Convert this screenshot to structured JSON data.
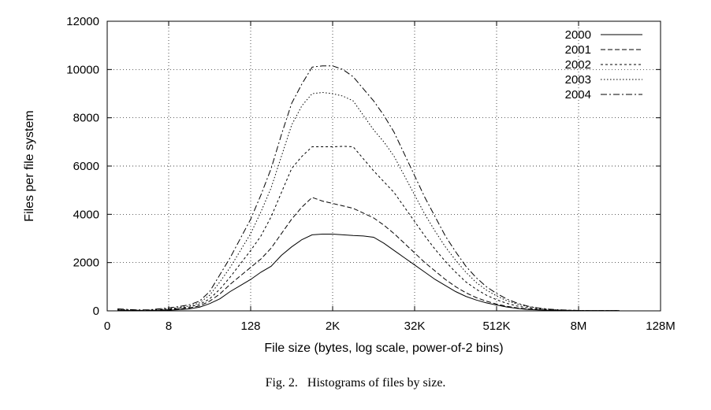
{
  "chart_data": {
    "type": "line",
    "title": "",
    "xlabel": "File size (bytes, log scale, power-of-2 bins)",
    "ylabel": "Files per file system",
    "x_scale": "log2",
    "xlim": [
      0,
      26
    ],
    "ylim": [
      0,
      12000
    ],
    "x_ticks": [
      {
        "value": 0,
        "label": "0"
      },
      {
        "value": 3,
        "label": "8"
      },
      {
        "value": 7,
        "label": "128"
      },
      {
        "value": 11,
        "label": "2K"
      },
      {
        "value": 15,
        "label": "32K"
      },
      {
        "value": 19,
        "label": "512K"
      },
      {
        "value": 23,
        "label": "8M"
      },
      {
        "value": 27,
        "label": "128M"
      }
    ],
    "y_ticks": [
      0,
      2000,
      4000,
      6000,
      8000,
      10000,
      12000
    ],
    "grid": true,
    "legend_position": "top-right",
    "x": [
      0.5,
      1,
      1.5,
      2,
      2.5,
      3,
      3.5,
      4,
      4.5,
      5,
      5.5,
      6,
      6.5,
      7,
      7.5,
      8,
      8.5,
      9,
      9.5,
      10,
      10.5,
      11,
      11.5,
      12,
      12.5,
      13,
      13.5,
      14,
      14.5,
      15,
      15.5,
      16,
      16.5,
      17,
      17.5,
      18,
      18.5,
      19,
      19.5,
      20,
      20.5,
      21,
      21.5,
      22,
      22.5,
      23,
      23.5,
      24,
      24.5,
      25
    ],
    "series": [
      {
        "name": "2000",
        "dash": "",
        "values": [
          20,
          15,
          10,
          10,
          20,
          30,
          50,
          80,
          150,
          300,
          500,
          800,
          1050,
          1300,
          1600,
          1850,
          2300,
          2650,
          2950,
          3150,
          3180,
          3180,
          3150,
          3120,
          3100,
          3050,
          2800,
          2500,
          2200,
          1900,
          1600,
          1300,
          1050,
          800,
          600,
          450,
          330,
          240,
          160,
          100,
          60,
          40,
          25,
          15,
          10,
          5,
          5,
          5,
          5,
          5
        ]
      },
      {
        "name": "2001",
        "dash": "6,3",
        "values": [
          30,
          20,
          15,
          15,
          30,
          50,
          80,
          120,
          200,
          400,
          700,
          1100,
          1450,
          1800,
          2150,
          2600,
          3200,
          3800,
          4300,
          4700,
          4550,
          4450,
          4350,
          4250,
          4050,
          3850,
          3550,
          3200,
          2800,
          2400,
          2000,
          1650,
          1300,
          1000,
          750,
          550,
          400,
          280,
          190,
          120,
          80,
          50,
          30,
          20,
          12,
          8,
          5,
          5,
          5,
          5
        ]
      },
      {
        "name": "2002",
        "dash": "3,3",
        "values": [
          40,
          30,
          20,
          20,
          40,
          70,
          110,
          160,
          260,
          500,
          900,
          1400,
          1950,
          2500,
          3100,
          3900,
          4900,
          5900,
          6400,
          6800,
          6800,
          6800,
          6820,
          6800,
          6300,
          5800,
          5350,
          4900,
          4300,
          3700,
          3100,
          2550,
          2050,
          1600,
          1200,
          900,
          650,
          460,
          310,
          200,
          130,
          80,
          50,
          30,
          18,
          12,
          8,
          5,
          5,
          5
        ]
      },
      {
        "name": "2003",
        "dash": "1.5,2.5",
        "values": [
          60,
          45,
          30,
          30,
          60,
          90,
          140,
          200,
          330,
          650,
          1200,
          1800,
          2500,
          3200,
          4100,
          5100,
          6400,
          7700,
          8500,
          9000,
          9050,
          9000,
          8900,
          8700,
          8100,
          7500,
          7000,
          6400,
          5600,
          4800,
          4000,
          3300,
          2650,
          2100,
          1600,
          1180,
          860,
          620,
          420,
          280,
          180,
          110,
          70,
          40,
          25,
          15,
          10,
          5,
          5,
          5
        ]
      },
      {
        "name": "2004",
        "dash": "8,3,2,3",
        "values": [
          80,
          60,
          40,
          40,
          80,
          120,
          180,
          250,
          400,
          800,
          1500,
          2200,
          3000,
          3800,
          4800,
          5900,
          7300,
          8600,
          9400,
          10100,
          10150,
          10150,
          10000,
          9700,
          9200,
          8700,
          8100,
          7400,
          6500,
          5600,
          4700,
          3900,
          3100,
          2450,
          1850,
          1380,
          1000,
          720,
          490,
          320,
          200,
          120,
          75,
          45,
          28,
          17,
          10,
          6,
          5,
          5
        ]
      }
    ]
  },
  "caption": "Fig. 2.   Histograms of files by size."
}
